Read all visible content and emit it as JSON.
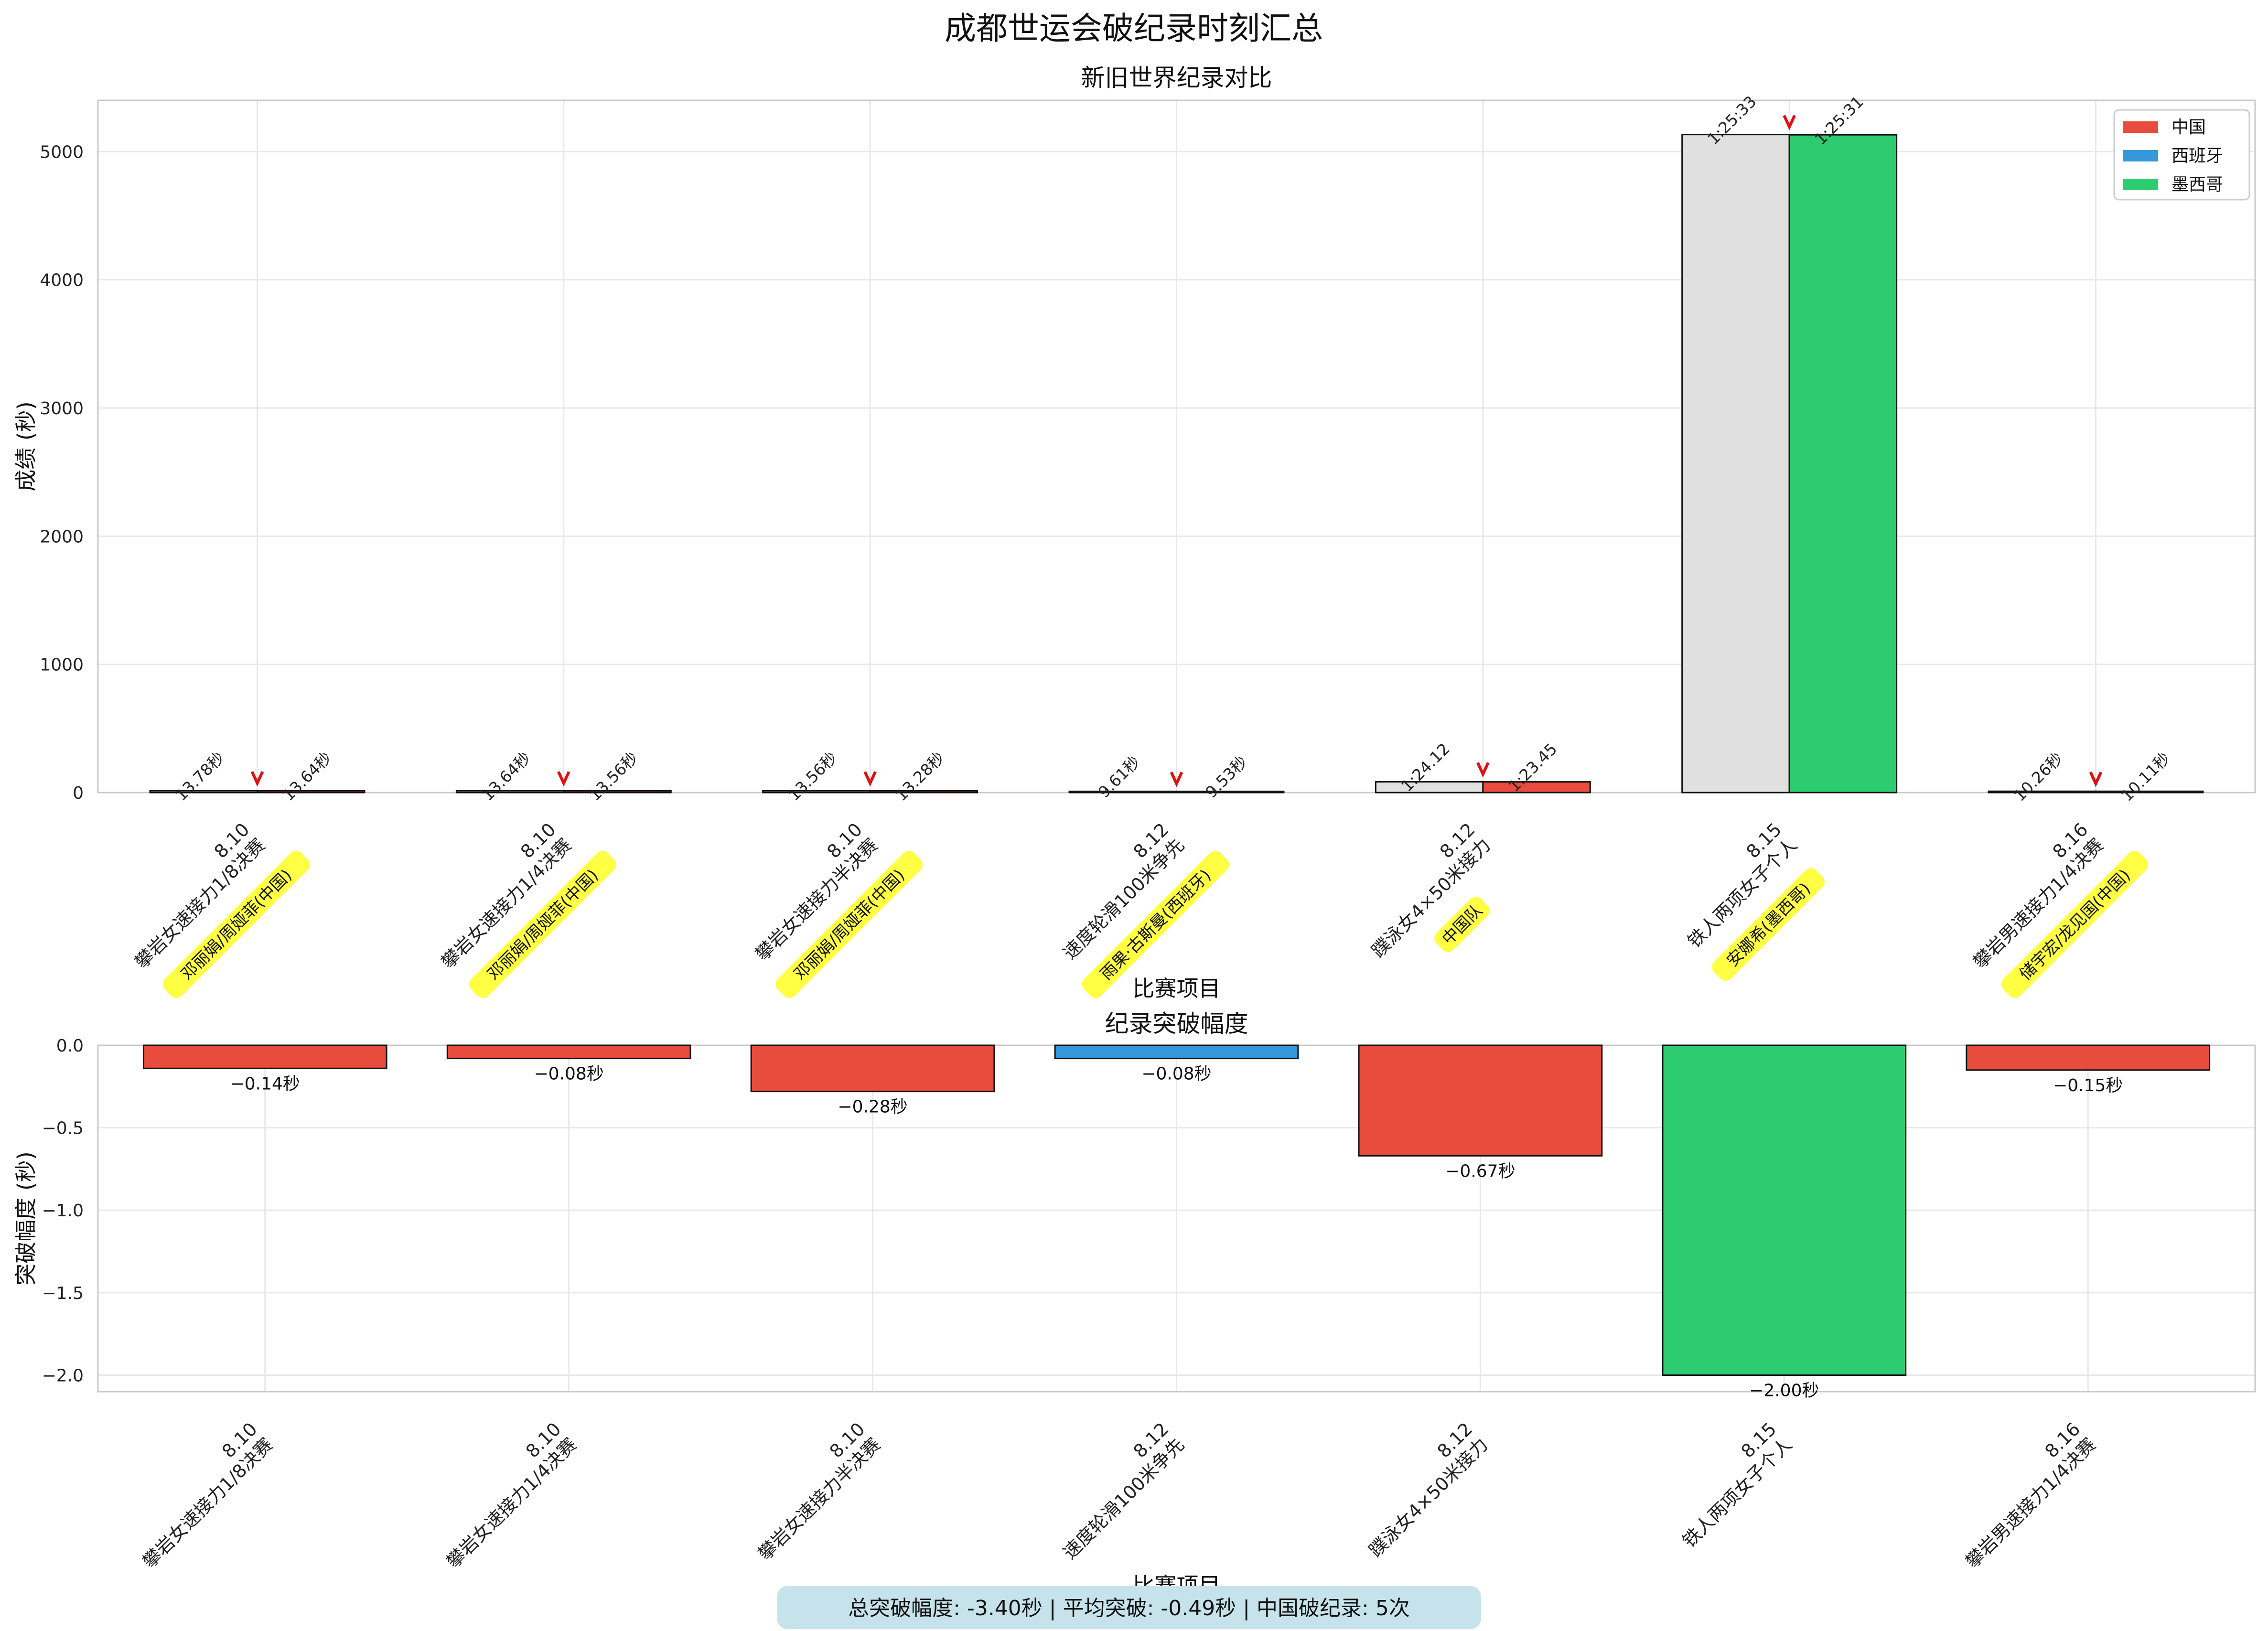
{
  "figure": {
    "suptitle": "成都世运会破纪录时刻汇总",
    "summary": "总突破幅度: -3.40秒 | 平均突破: -0.49秒 | 中国破纪录: 5次",
    "summary_bg": "#c6e3eb"
  },
  "colors": {
    "中国": "#e74c3c",
    "西班牙": "#3498db",
    "墨西哥": "#2ecc71",
    "old_record": "#e0e0e0",
    "arrow": "#e01010",
    "athlete_label_bg": "#ffff44",
    "grid": "#e8e8e8",
    "axes_edge": "#c8c8c8"
  },
  "chart_data": [
    {
      "type": "bar",
      "title": "新旧世界纪录对比",
      "xlabel": "比赛项目",
      "ylabel": "成绩 (秒)",
      "ylim": [
        0,
        5400
      ],
      "yticks": [
        0,
        1000,
        2000,
        3000,
        4000,
        5000
      ],
      "grid": true,
      "legend": {
        "position": "upper-right",
        "entries": [
          "中国",
          "西班牙",
          "墨西哥"
        ]
      },
      "categories": [
        "8.10\n攀岩女速接力1/8决赛",
        "8.10\n攀岩女速接力1/4决赛",
        "8.10\n攀岩女速接力半决赛",
        "8.12\n速度轮滑100米争先",
        "8.12\n蹼泳女4×50米接力",
        "8.15\n铁人两项女子个人",
        "8.16\n攀岩男速接力1/4决赛"
      ],
      "athletes": [
        "邓丽娟/周娅菲(中国)",
        "邓丽娟/周娅菲(中国)",
        "邓丽娟/周娅菲(中国)",
        "雨果·古斯曼(西班牙)",
        "中国队",
        "安娜希(墨西哥)",
        "储宇宏/龙见国(中国)"
      ],
      "countries": [
        "中国",
        "中国",
        "中国",
        "西班牙",
        "中国",
        "墨西哥",
        "中国"
      ],
      "series": [
        {
          "name": "旧纪录",
          "values": [
            13.78,
            13.64,
            13.56,
            9.61,
            84.12,
            5133,
            10.26
          ],
          "labels": [
            "13.78秒",
            "13.64秒",
            "13.56秒",
            "9.61秒",
            "1:24.12",
            "1:25:33",
            "10.26秒"
          ]
        },
        {
          "name": "新纪录",
          "values": [
            13.64,
            13.56,
            13.28,
            9.53,
            83.45,
            5131,
            10.11
          ],
          "labels": [
            "13.64秒",
            "13.56秒",
            "13.28秒",
            "9.53秒",
            "1:23.45",
            "1:25:31",
            "10.11秒"
          ]
        }
      ]
    },
    {
      "type": "bar",
      "title": "纪录突破幅度",
      "xlabel": "比赛项目",
      "ylabel": "突破幅度 (秒)",
      "ylim": [
        -2.1,
        0
      ],
      "yticks": [
        0.0,
        -0.5,
        -1.0,
        -1.5,
        -2.0
      ],
      "ytick_labels": [
        "0.0",
        "−0.5",
        "−1.0",
        "−1.5",
        "−2.0"
      ],
      "grid": true,
      "categories": [
        "8.10\n攀岩女速接力1/8决赛",
        "8.10\n攀岩女速接力1/4决赛",
        "8.10\n攀岩女速接力半决赛",
        "8.12\n速度轮滑100米争先",
        "8.12\n蹼泳女4×50米接力",
        "8.15\n铁人两项女子个人",
        "8.16\n攀岩男速接力1/4决赛"
      ],
      "countries": [
        "中国",
        "中国",
        "中国",
        "西班牙",
        "中国",
        "墨西哥",
        "中国"
      ],
      "values": [
        -0.14,
        -0.08,
        -0.28,
        -0.08,
        -0.67,
        -2.0,
        -0.15
      ],
      "labels": [
        "−0.14秒",
        "−0.08秒",
        "−0.28秒",
        "−0.08秒",
        "−0.67秒",
        "−2.00秒",
        "−0.15秒"
      ]
    }
  ]
}
